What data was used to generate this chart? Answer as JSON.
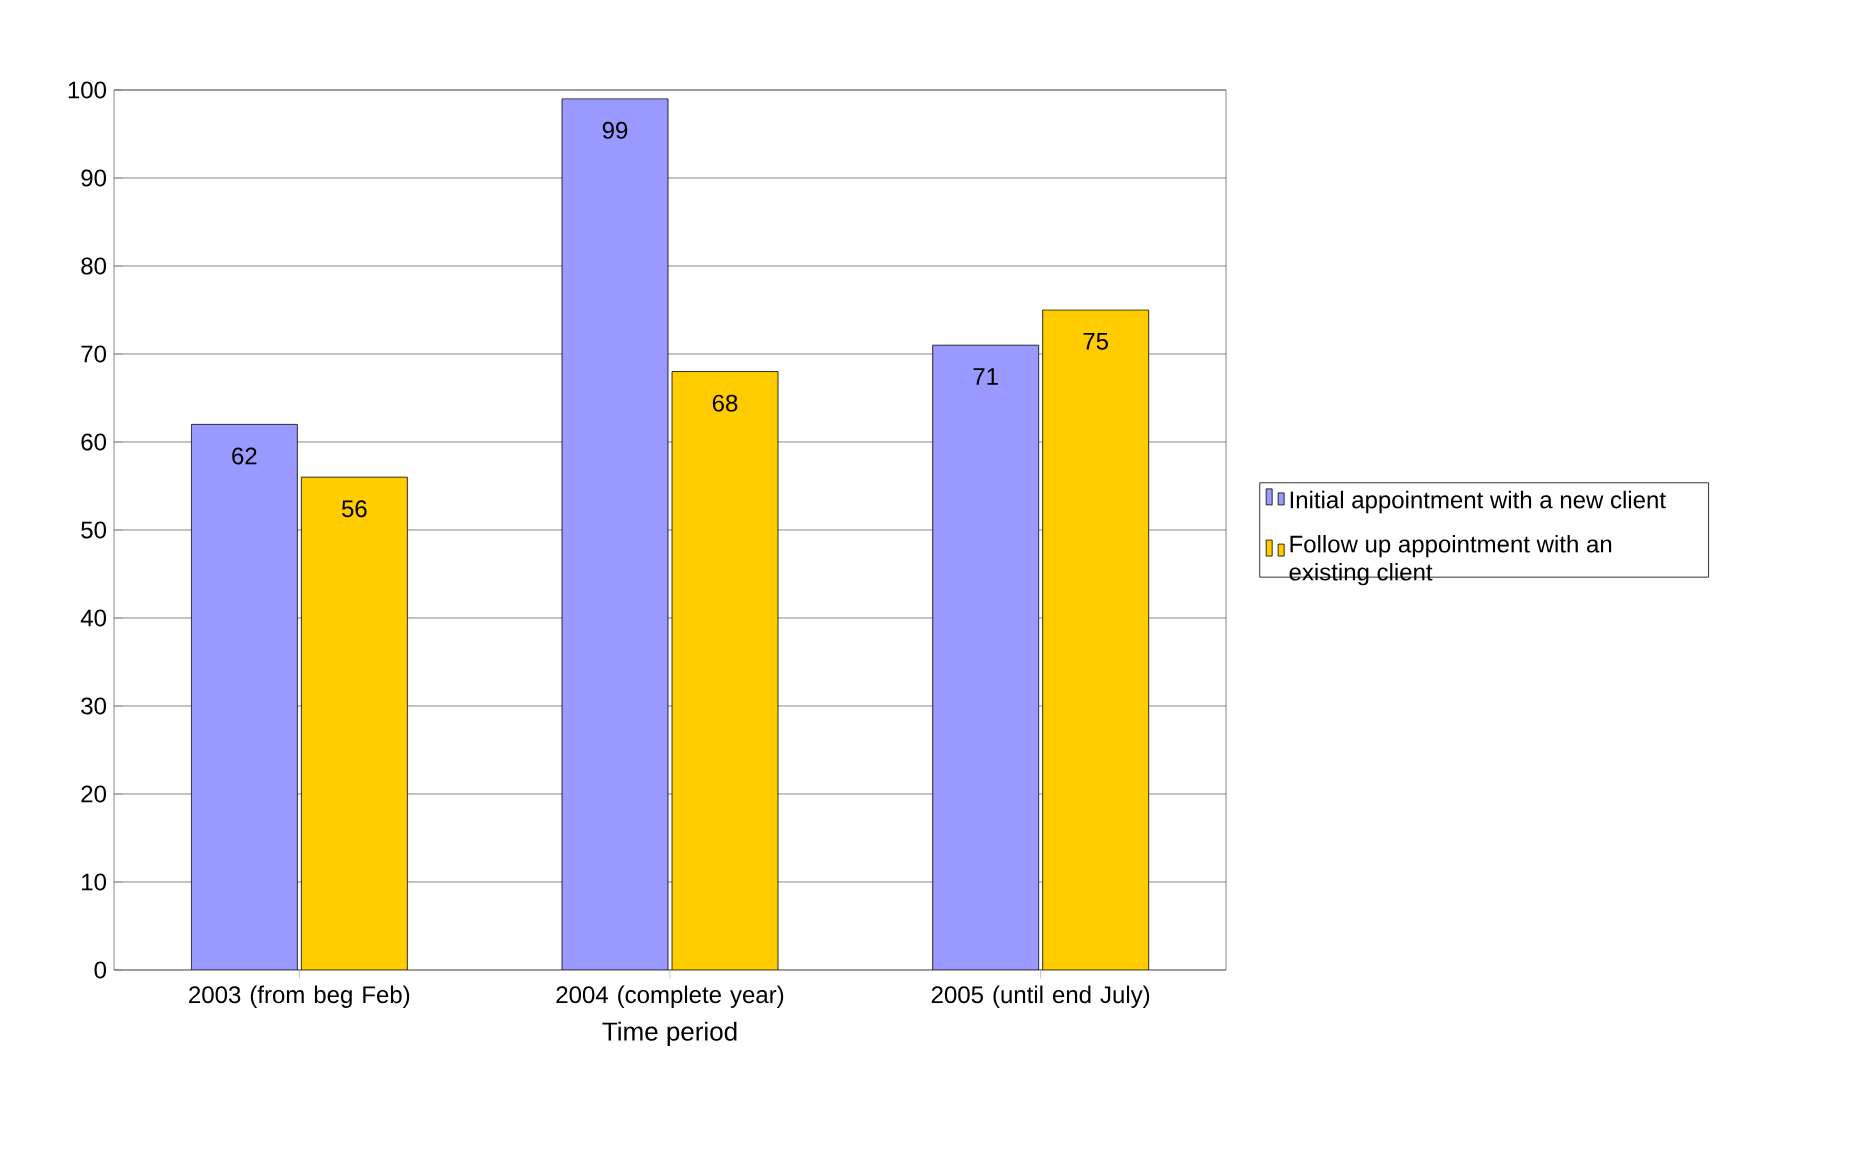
{
  "chart_data": {
    "type": "bar",
    "xlabel": "Time period",
    "categories": [
      "2003 (from beg Feb)",
      "2004 (complete year)",
      "2005 (until end July)"
    ],
    "series": [
      {
        "name": "Initial appointment with a new client",
        "color": "#9999ff",
        "values": [
          62,
          99,
          71
        ]
      },
      {
        "name": "Follow up appointment with an existing client",
        "color": "#ffcc00",
        "values": [
          56,
          68,
          75
        ]
      }
    ],
    "ylim": [
      0,
      100
    ],
    "yticks": [
      0,
      10,
      20,
      30,
      40,
      50,
      60,
      70,
      80,
      90,
      100
    ],
    "grid": "y",
    "legend": "right",
    "data_labels": true
  }
}
